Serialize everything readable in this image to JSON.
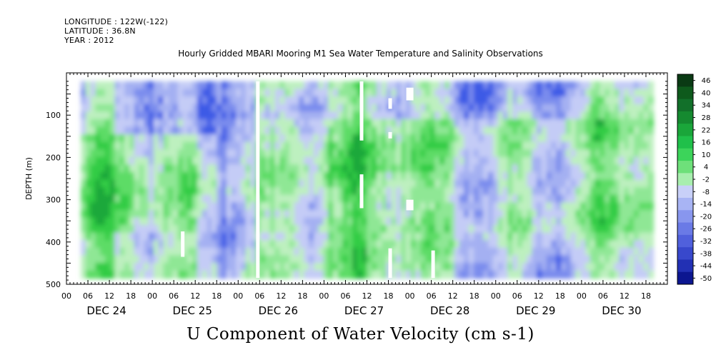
{
  "header": {
    "longitude": "LONGITUDE : 122W(-122)",
    "latitude": "LATITUDE : 36.8N",
    "year": "YEAR : 2012",
    "title": "Hourly Gridded MBARI Mooring M1 Sea Water Temperature and Salinity Observations"
  },
  "footer": {
    "variable_title": "U Component of Water Velocity (cm s-1)"
  },
  "colors": {
    "plot_border": "#000000",
    "gap_fill": "#ffffff",
    "blue_dark": "#3050e0",
    "blue_light": "#9aa6f0",
    "green_light": "#9ee89e",
    "green_mid": "#40d240",
    "green_dark": "#0a6a1a"
  },
  "chart_data": {
    "type": "heatmap",
    "title": "Hourly Gridded MBARI Mooring M1 Sea Water Temperature and Salinity Observations",
    "xlabel": "",
    "ylabel": "DEPTH (m)",
    "ylim": [
      500,
      20
    ],
    "y_ticks": [
      100,
      200,
      300,
      400,
      500
    ],
    "x_hour_ticks": [
      "00",
      "06",
      "12",
      "18",
      "00",
      "06",
      "12",
      "18",
      "00",
      "06",
      "12",
      "18",
      "00",
      "06",
      "12",
      "18",
      "00",
      "06",
      "12",
      "18",
      "00",
      "06",
      "12",
      "18",
      "00",
      "06",
      "12",
      "18"
    ],
    "x_day_labels": [
      "DEC 24",
      "DEC 25",
      "DEC 26",
      "DEC 27",
      "DEC 28",
      "DEC 29",
      "DEC 30"
    ],
    "colorbar_levels": [
      46,
      40,
      34,
      28,
      22,
      16,
      10,
      4,
      -2,
      -8,
      -14,
      -20,
      -26,
      -32,
      -38,
      -44,
      -50
    ],
    "colorbar_colors": [
      "#0a3a14",
      "#0e5a1c",
      "#12702a",
      "#158a30",
      "#1aa63a",
      "#20c04a",
      "#3cd45a",
      "#6ee07a",
      "#a8eeae",
      "#c8d0f8",
      "#a8b4f4",
      "#8896ee",
      "#6a7ae6",
      "#5060dc",
      "#3848cc",
      "#2230b4",
      "#0c1690"
    ],
    "data_region": {
      "start": "DEC 24 04",
      "end": "DEC 30 20",
      "depth_top": 20,
      "depth_bottom": 485
    },
    "missing_data": [
      {
        "from": "DEC 26 05",
        "to": "DEC 26 06",
        "depth_from": 20,
        "depth_to": 485
      },
      {
        "from": "DEC 27 10",
        "to": "DEC 27 11",
        "depth_from": 20,
        "depth_to": 160
      },
      {
        "from": "DEC 27 10",
        "to": "DEC 27 11",
        "depth_from": 240,
        "depth_to": 320
      },
      {
        "from": "DEC 27 18",
        "to": "DEC 27 19",
        "depth_from": 60,
        "depth_to": 85
      },
      {
        "from": "DEC 27 18",
        "to": "DEC 27 19",
        "depth_from": 140,
        "depth_to": 155
      },
      {
        "from": "DEC 27 18",
        "to": "DEC 27 19",
        "depth_from": 415,
        "depth_to": 485
      },
      {
        "from": "DEC 27 23",
        "to": "DEC 28 01",
        "depth_from": 35,
        "depth_to": 65
      },
      {
        "from": "DEC 27 23",
        "to": "DEC 28 01",
        "depth_from": 300,
        "depth_to": 325
      },
      {
        "from": "DEC 25 08",
        "to": "DEC 25 09",
        "depth_from": 375,
        "depth_to": 435
      },
      {
        "from": "DEC 28 06",
        "to": "DEC 28 07",
        "depth_from": 420,
        "depth_to": 485
      }
    ]
  }
}
